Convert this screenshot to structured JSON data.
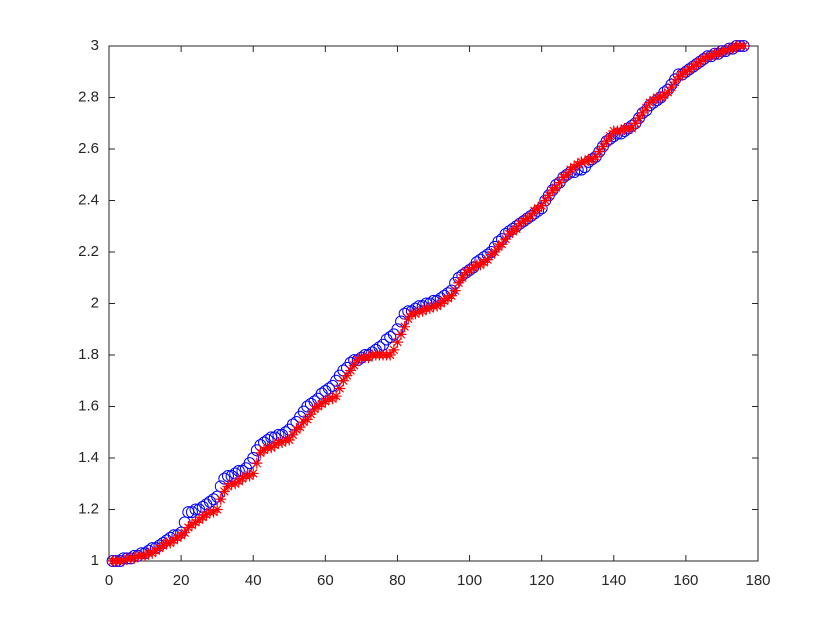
{
  "chart_data": {
    "type": "scatter",
    "x": [
      1,
      2,
      3,
      4,
      5,
      6,
      7,
      8,
      9,
      10,
      11,
      12,
      13,
      14,
      15,
      16,
      17,
      18,
      19,
      20,
      21,
      22,
      23,
      24,
      25,
      26,
      27,
      28,
      29,
      30,
      31,
      32,
      33,
      34,
      35,
      36,
      37,
      38,
      39,
      40,
      41,
      42,
      43,
      44,
      45,
      46,
      47,
      48,
      49,
      50,
      51,
      52,
      53,
      54,
      55,
      56,
      57,
      58,
      59,
      60,
      61,
      62,
      63,
      64,
      65,
      66,
      67,
      68,
      69,
      70,
      71,
      72,
      73,
      74,
      75,
      76,
      77,
      78,
      79,
      80,
      81,
      82,
      83,
      84,
      85,
      86,
      87,
      88,
      89,
      90,
      91,
      92,
      93,
      94,
      95,
      96,
      97,
      98,
      99,
      100,
      101,
      102,
      103,
      104,
      105,
      106,
      107,
      108,
      109,
      110,
      111,
      112,
      113,
      114,
      115,
      116,
      117,
      118,
      119,
      120,
      121,
      122,
      123,
      124,
      125,
      126,
      127,
      128,
      129,
      130,
      131,
      132,
      133,
      134,
      135,
      136,
      137,
      138,
      139,
      140,
      141,
      142,
      143,
      144,
      145,
      146,
      147,
      148,
      149,
      150,
      151,
      152,
      153,
      154,
      155,
      156,
      157,
      158,
      159,
      160,
      161,
      162,
      163,
      164,
      165,
      166,
      167,
      168,
      169,
      170,
      171,
      172,
      173,
      174,
      175,
      176
    ],
    "series": [
      {
        "color": "#0000ff",
        "marker": "o",
        "values": [
          1.0,
          1.0,
          1.0,
          1.01,
          1.01,
          1.01,
          1.02,
          1.02,
          1.03,
          1.03,
          1.04,
          1.05,
          1.05,
          1.06,
          1.07,
          1.08,
          1.09,
          1.1,
          1.1,
          1.11,
          1.15,
          1.19,
          1.19,
          1.2,
          1.2,
          1.21,
          1.22,
          1.23,
          1.24,
          1.25,
          1.29,
          1.32,
          1.33,
          1.33,
          1.34,
          1.35,
          1.35,
          1.36,
          1.38,
          1.4,
          1.43,
          1.45,
          1.46,
          1.47,
          1.48,
          1.48,
          1.49,
          1.49,
          1.5,
          1.51,
          1.53,
          1.54,
          1.56,
          1.58,
          1.6,
          1.61,
          1.62,
          1.63,
          1.65,
          1.66,
          1.67,
          1.68,
          1.7,
          1.72,
          1.74,
          1.75,
          1.77,
          1.78,
          1.78,
          1.79,
          1.8,
          1.8,
          1.81,
          1.82,
          1.83,
          1.84,
          1.86,
          1.87,
          1.88,
          1.9,
          1.93,
          1.96,
          1.97,
          1.97,
          1.98,
          1.99,
          1.99,
          2.0,
          2.0,
          2.01,
          2.01,
          2.02,
          2.03,
          2.04,
          2.05,
          2.08,
          2.1,
          2.11,
          2.12,
          2.13,
          2.14,
          2.16,
          2.17,
          2.18,
          2.19,
          2.2,
          2.22,
          2.24,
          2.25,
          2.27,
          2.28,
          2.29,
          2.3,
          2.31,
          2.32,
          2.33,
          2.34,
          2.35,
          2.36,
          2.37,
          2.4,
          2.42,
          2.44,
          2.46,
          2.47,
          2.49,
          2.5,
          2.51,
          2.51,
          2.52,
          2.52,
          2.53,
          2.55,
          2.56,
          2.57,
          2.59,
          2.61,
          2.63,
          2.64,
          2.65,
          2.66,
          2.66,
          2.67,
          2.68,
          2.69,
          2.7,
          2.72,
          2.74,
          2.75,
          2.77,
          2.78,
          2.79,
          2.8,
          2.82,
          2.83,
          2.85,
          2.87,
          2.89,
          2.89,
          2.9,
          2.91,
          2.92,
          2.93,
          2.94,
          2.95,
          2.96,
          2.96,
          2.97,
          2.97,
          2.98,
          2.98,
          2.99,
          2.99,
          3.0,
          3.0,
          3.0
        ]
      },
      {
        "color": "#ff0000",
        "marker": "*",
        "values": [
          1.0,
          1.0,
          1.0,
          1.0,
          1.01,
          1.01,
          1.01,
          1.02,
          1.02,
          1.02,
          1.03,
          1.03,
          1.04,
          1.05,
          1.06,
          1.07,
          1.07,
          1.08,
          1.09,
          1.1,
          1.11,
          1.13,
          1.14,
          1.15,
          1.16,
          1.17,
          1.18,
          1.19,
          1.19,
          1.2,
          1.24,
          1.27,
          1.29,
          1.3,
          1.3,
          1.31,
          1.32,
          1.33,
          1.33,
          1.34,
          1.38,
          1.42,
          1.43,
          1.44,
          1.44,
          1.45,
          1.46,
          1.46,
          1.47,
          1.47,
          1.49,
          1.51,
          1.52,
          1.54,
          1.55,
          1.57,
          1.59,
          1.6,
          1.61,
          1.62,
          1.63,
          1.63,
          1.64,
          1.67,
          1.7,
          1.72,
          1.74,
          1.76,
          1.78,
          1.79,
          1.79,
          1.79,
          1.8,
          1.8,
          1.8,
          1.8,
          1.8,
          1.8,
          1.82,
          1.85,
          1.88,
          1.91,
          1.94,
          1.96,
          1.96,
          1.97,
          1.97,
          1.98,
          1.98,
          1.99,
          1.99,
          2.0,
          2.01,
          2.02,
          2.03,
          2.05,
          2.08,
          2.1,
          2.12,
          2.13,
          2.14,
          2.15,
          2.15,
          2.16,
          2.17,
          2.19,
          2.2,
          2.22,
          2.23,
          2.25,
          2.27,
          2.28,
          2.29,
          2.31,
          2.32,
          2.33,
          2.34,
          2.36,
          2.37,
          2.38,
          2.4,
          2.42,
          2.44,
          2.45,
          2.47,
          2.49,
          2.5,
          2.52,
          2.53,
          2.54,
          2.55,
          2.55,
          2.56,
          2.56,
          2.57,
          2.59,
          2.61,
          2.63,
          2.65,
          2.67,
          2.67,
          2.67,
          2.68,
          2.68,
          2.68,
          2.7,
          2.72,
          2.74,
          2.76,
          2.78,
          2.79,
          2.8,
          2.8,
          2.81,
          2.82,
          2.84,
          2.86,
          2.88,
          2.89,
          2.9,
          2.91,
          2.92,
          2.93,
          2.94,
          2.95,
          2.96,
          2.96,
          2.97,
          2.97,
          2.98,
          2.98,
          2.99,
          2.99,
          3.0,
          3.0,
          3.0
        ]
      }
    ],
    "xlim": [
      0,
      180
    ],
    "xticks": [
      0,
      20,
      40,
      60,
      80,
      100,
      120,
      140,
      160,
      180
    ],
    "ylim": [
      1,
      3
    ],
    "yticks": [
      1,
      1.2,
      1.4,
      1.6,
      1.8,
      2,
      2.2,
      2.4,
      2.6,
      2.8,
      3
    ],
    "grid": false
  }
}
